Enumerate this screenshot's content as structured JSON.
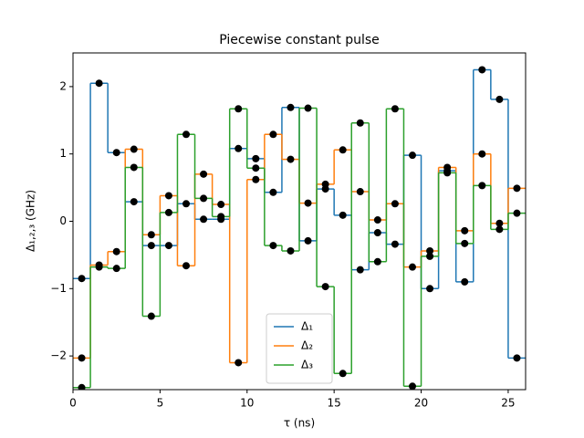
{
  "chart_data": {
    "type": "step",
    "title": "Piecewise constant pulse",
    "x_label": "τ (ns)",
    "y_label": "Δ₁,₂,₃ (GHz)",
    "x": [
      0.5,
      1.5,
      2.5,
      3.5,
      4.5,
      5.5,
      6.5,
      7.5,
      8.5,
      9.5,
      10.5,
      11.5,
      12.5,
      13.5,
      14.5,
      15.5,
      16.5,
      17.5,
      18.5,
      19.5,
      20.5,
      21.5,
      22.5,
      23.5,
      24.5,
      25.5
    ],
    "series": [
      {
        "name": "Δ₁",
        "color": "#1f77b4",
        "values": [
          -0.85,
          2.05,
          1.02,
          0.29,
          -0.36,
          -0.36,
          0.26,
          0.03,
          0.03,
          1.08,
          0.93,
          0.43,
          1.69,
          -0.29,
          0.48,
          0.09,
          -0.72,
          -0.17,
          -0.34,
          0.98,
          -1.0,
          0.75,
          -0.9,
          2.25,
          1.81,
          -2.03
        ]
      },
      {
        "name": "Δ₂",
        "color": "#ff7f0e",
        "values": [
          -2.03,
          -0.65,
          -0.45,
          1.07,
          -0.2,
          0.38,
          -0.66,
          0.7,
          0.25,
          -2.1,
          0.62,
          1.29,
          0.92,
          0.27,
          0.55,
          1.06,
          0.44,
          0.02,
          0.26,
          -0.68,
          -0.44,
          0.8,
          -0.14,
          1.0,
          -0.03,
          0.49
        ]
      },
      {
        "name": "Δ₃",
        "color": "#2ca02c",
        "values": [
          -2.47,
          -0.68,
          -0.7,
          0.8,
          -1.41,
          0.13,
          1.29,
          0.34,
          0.07,
          1.67,
          0.79,
          -0.36,
          -0.44,
          1.68,
          -0.97,
          -2.26,
          1.46,
          -0.6,
          1.67,
          -2.45,
          -0.52,
          0.72,
          -0.33,
          0.53,
          -0.12,
          0.12
        ]
      }
    ],
    "marker_color": "#000000",
    "xlim": [
      0,
      26
    ],
    "xticks": [
      0,
      5,
      10,
      15,
      20,
      25
    ],
    "ylim": [
      -2.5,
      2.5
    ],
    "yticks": [
      -2,
      -1,
      0,
      1,
      2
    ],
    "legend": "lower center"
  }
}
